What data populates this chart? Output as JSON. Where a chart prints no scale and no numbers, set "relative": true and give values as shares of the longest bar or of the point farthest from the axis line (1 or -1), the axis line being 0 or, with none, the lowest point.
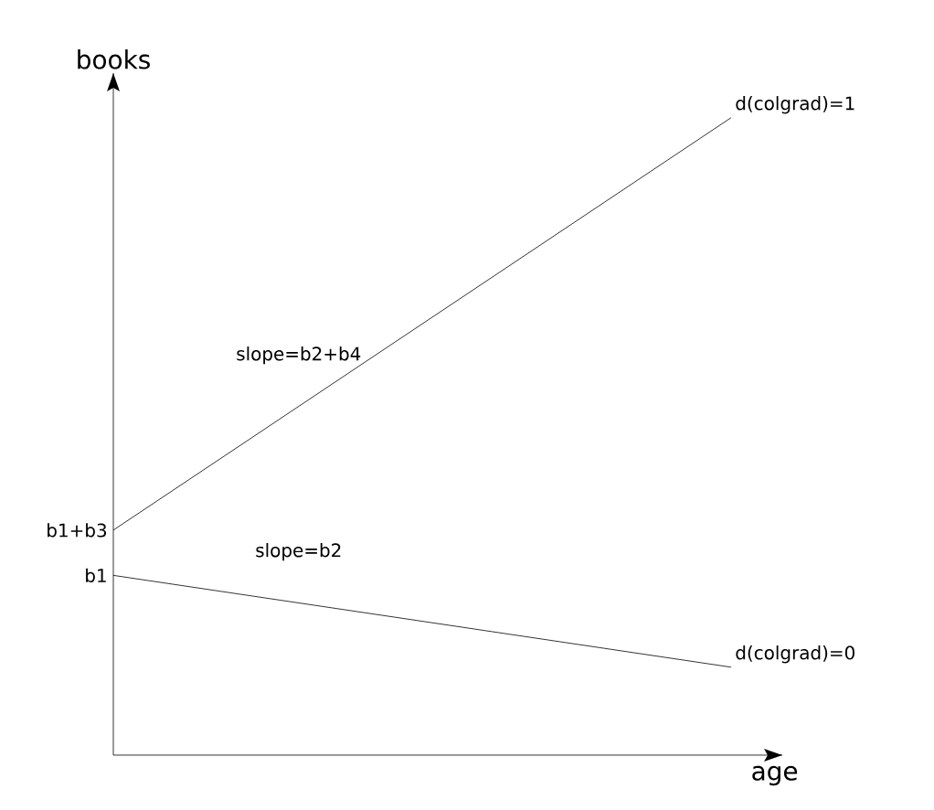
{
  "chart_data": {
    "type": "line",
    "relative": true,
    "xlabel": "age",
    "ylabel": "books",
    "categories": [
      null,
      null
    ],
    "series": [
      {
        "name": "d(colgrad)=1",
        "color": "#000000",
        "values": [
          0.353,
          1
        ]
      },
      {
        "name": "d(colgrad)=0",
        "color": "#000000",
        "values": [
          0.282,
          0.138
        ]
      }
    ],
    "annotations": [
      "slope=b2+b4",
      "slope=b2",
      "b1+b3",
      "b1"
    ]
  }
}
